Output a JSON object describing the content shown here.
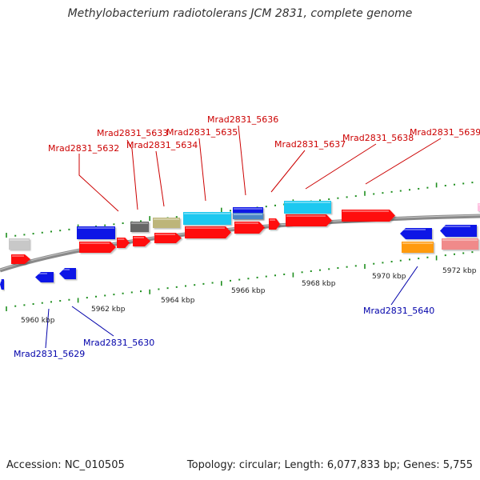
{
  "title": "Methylobacterium radiotolerans JCM 2831, complete genome",
  "footer": {
    "accession": "Accession: NC_010505",
    "topology": "Topology: circular; Length: 6,077,833 bp; Genes: 5,755"
  },
  "scale_labels": [
    "5960 kbp",
    "5962 kbp",
    "5964 kbp",
    "5966 kbp",
    "5968 kbp",
    "5970 kbp",
    "5972 kbp"
  ],
  "colors": {
    "backbone": "#8a8a8a",
    "forward_gene": "#ff1010",
    "reverse_gene": "#0a18e6",
    "top_label": "#cc0000",
    "bottom_label": "#0000aa",
    "tick": "#1f8f1f"
  },
  "gene_labels_top": [
    "Mrad2831_5632",
    "Mrad2831_5633",
    "Mrad2831_5634",
    "Mrad2831_5635",
    "Mrad2831_5636",
    "Mrad2831_5637",
    "Mrad2831_5638",
    "Mrad2831_5639"
  ],
  "gene_labels_bottom": [
    "Mrad2831_5629",
    "Mrad2831_5630",
    "Mrad2831_5640"
  ]
}
